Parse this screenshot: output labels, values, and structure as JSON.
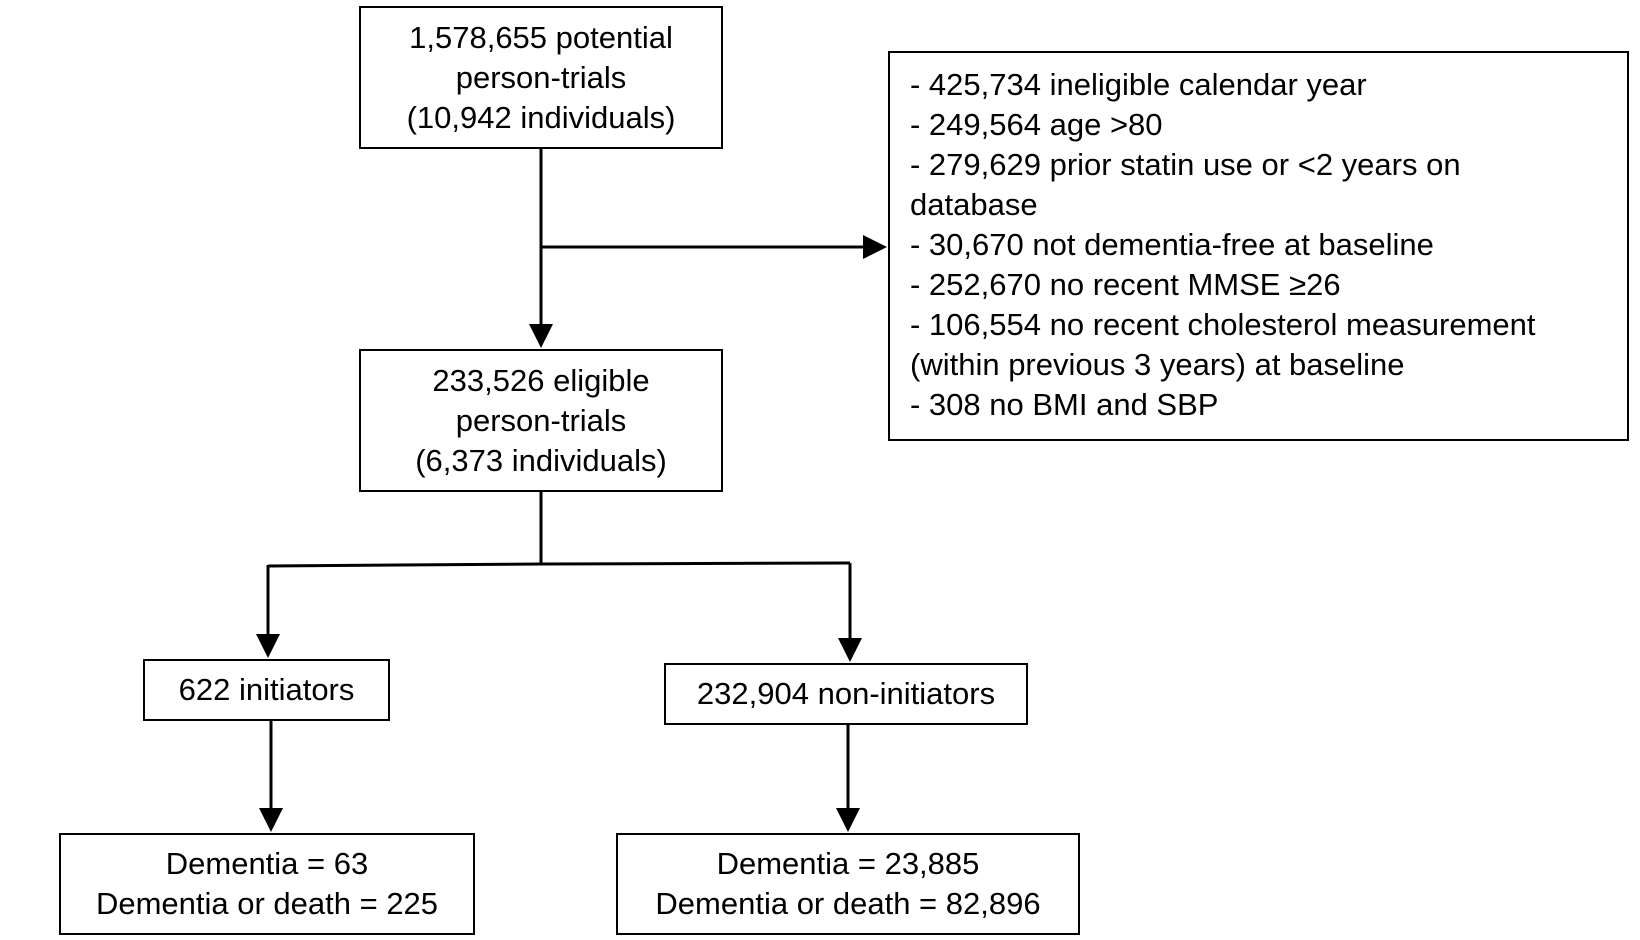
{
  "diagram": {
    "potential": {
      "lines": [
        "1,578,655 potential",
        "person-trials",
        "(10,942 individuals)"
      ]
    },
    "excluded": {
      "lines": [
        "- 425,734 ineligible calendar year",
        "- 249,564 age >80",
        "- 279,629 prior statin use or <2 years on",
        "database",
        "- 30,670 not dementia-free at baseline",
        "- 252,670 no recent MMSE ≥26",
        "- 106,554 no recent cholesterol measurement",
        "(within previous 3 years) at baseline",
        "- 308 no BMI and SBP"
      ]
    },
    "eligible": {
      "lines": [
        "233,526 eligible",
        "person-trials",
        "(6,373 individuals)"
      ]
    },
    "initiators": {
      "lines": [
        "622 initiators"
      ]
    },
    "non_initiators": {
      "lines": [
        "232,904 non-initiators"
      ]
    },
    "initiators_outcomes": {
      "lines": [
        "Dementia = 63",
        "Dementia or death = 225"
      ]
    },
    "non_initiators_outcomes": {
      "lines": [
        "Dementia = 23,885",
        "Dementia or death = 82,896"
      ]
    }
  }
}
